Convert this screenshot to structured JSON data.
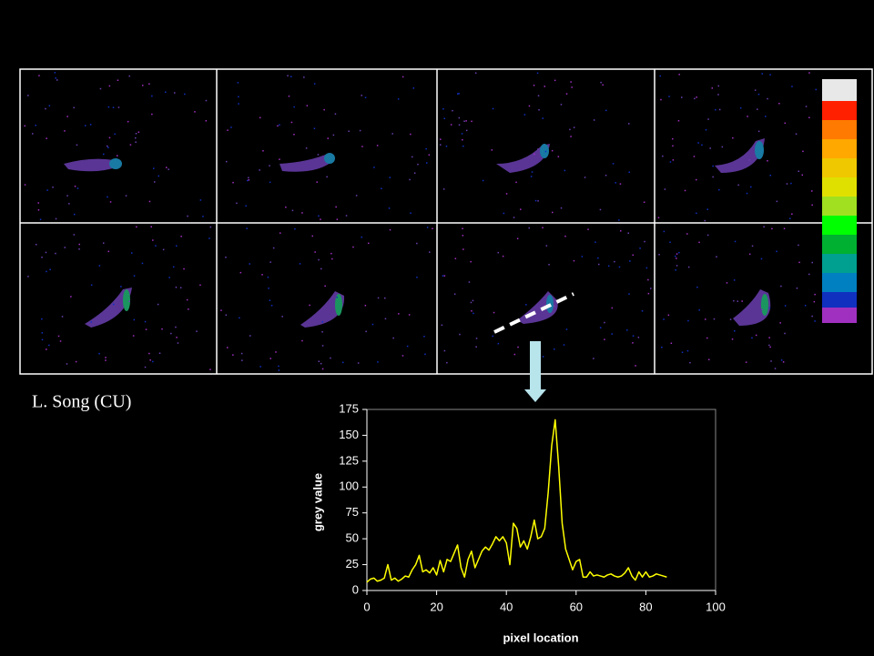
{
  "caption": "L. Song (CU)",
  "chart_data": {
    "type": "line",
    "x_label": "pixel location",
    "y_label": "grey value",
    "x": [
      0,
      1,
      2,
      3,
      4,
      5,
      6,
      7,
      8,
      9,
      10,
      11,
      12,
      13,
      14,
      15,
      16,
      17,
      18,
      19,
      20,
      21,
      22,
      23,
      24,
      25,
      26,
      27,
      28,
      29,
      30,
      31,
      32,
      33,
      34,
      35,
      36,
      37,
      38,
      39,
      40,
      41,
      42,
      43,
      44,
      45,
      46,
      47,
      48,
      49,
      50,
      51,
      52,
      53,
      54,
      55,
      56,
      57,
      58,
      59,
      60,
      61,
      62,
      63,
      64,
      65,
      66,
      67,
      68,
      69,
      70,
      71,
      72,
      73,
      74,
      75,
      76,
      77,
      78,
      79,
      80,
      81,
      82,
      83,
      84,
      85,
      86
    ],
    "values": [
      8,
      11,
      12,
      9,
      10,
      12,
      25,
      10,
      12,
      9,
      11,
      14,
      13,
      20,
      25,
      34,
      18,
      20,
      17,
      22,
      15,
      29,
      18,
      30,
      28,
      36,
      44,
      22,
      13,
      30,
      38,
      22,
      30,
      38,
      42,
      39,
      45,
      52,
      48,
      52,
      46,
      25,
      65,
      60,
      42,
      48,
      40,
      52,
      68,
      50,
      52,
      60,
      95,
      140,
      165,
      120,
      65,
      40,
      30,
      20,
      28,
      30,
      13,
      13,
      18,
      14,
      15,
      14,
      13,
      15,
      16,
      14,
      13,
      14,
      17,
      22,
      14,
      10,
      18,
      13,
      18,
      13,
      14,
      16,
      15,
      14,
      13
    ],
    "color": "#ffff00",
    "xlim": [
      0,
      100
    ],
    "xticks": [
      0,
      20,
      40,
      60,
      80,
      100
    ],
    "ylim": [
      0,
      175
    ],
    "yticks": [
      0,
      25,
      50,
      75,
      100,
      125,
      150,
      175
    ]
  }
}
